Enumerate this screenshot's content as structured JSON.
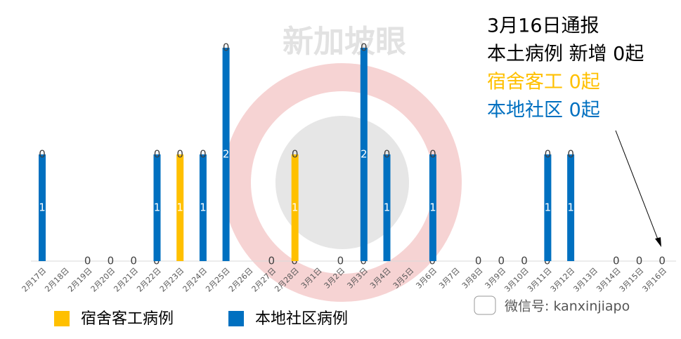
{
  "chart_data": {
    "type": "stacked_bar",
    "categories": [
      "2月17日",
      "2月18日",
      "2月19日",
      "2月20日",
      "2月21日",
      "2月22日",
      "2月23日",
      "2月24日",
      "2月25日",
      "2月26日",
      "2月27日",
      "2月28日",
      "3月1日",
      "3月2日",
      "3月3日",
      "3月4日",
      "3月5日",
      "3月6日",
      "3月7日",
      "3月8日",
      "3月9日",
      "3月10日",
      "3月11日",
      "3月12日",
      "3月13日",
      "3月14日",
      "3月15日",
      "3月16日"
    ],
    "series": [
      {
        "name": "宿舍客工病例",
        "color": "#ffc000",
        "values": [
          0,
          0,
          0,
          0,
          0,
          0,
          1,
          0,
          0,
          0,
          0,
          1,
          0,
          0,
          0,
          0,
          0,
          0,
          0,
          0,
          0,
          0,
          0,
          0,
          0,
          0,
          0,
          0
        ]
      },
      {
        "name": "本地社区病例",
        "color": "#0070c0",
        "values": [
          1,
          0,
          0,
          0,
          0,
          1,
          0,
          1,
          2,
          0,
          0,
          0,
          0,
          0,
          2,
          1,
          0,
          1,
          0,
          0,
          0,
          0,
          1,
          1,
          0,
          0,
          0,
          0
        ]
      },
      {
        "values": [
          0,
          0,
          0,
          0,
          0,
          0,
          0,
          0,
          0,
          0,
          0,
          0,
          0,
          0,
          0,
          0,
          0,
          0,
          0,
          0,
          0,
          0,
          0,
          0,
          0,
          0,
          0,
          0
        ]
      }
    ],
    "ylim": [
      0,
      2
    ],
    "annotations": [
      {
        "text": "3月16日通报",
        "color": "#000000"
      },
      {
        "text": "本土病例 新增 0起",
        "color": "#000000"
      },
      {
        "text": "宿舍客工 0起",
        "color": "#ffc000"
      },
      {
        "text": "本地社区 0起",
        "color": "#0070c0"
      }
    ],
    "watermark": "新加坡眼",
    "credit": "微信号: kanxinjiapo"
  }
}
